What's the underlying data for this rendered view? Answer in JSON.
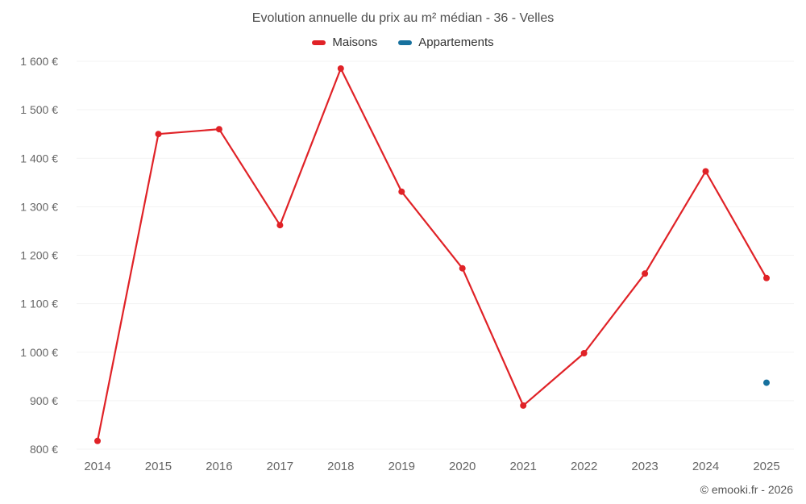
{
  "chart_data": {
    "type": "line",
    "title": "Evolution annuelle du prix au m² médian - 36 - Velles",
    "categories": [
      "2014",
      "2015",
      "2016",
      "2017",
      "2018",
      "2019",
      "2020",
      "2021",
      "2022",
      "2023",
      "2024",
      "2025"
    ],
    "series": [
      {
        "name": "Maisons",
        "color": "#e02227",
        "values": [
          817,
          1450,
          1460,
          1262,
          1585,
          1331,
          1173,
          890,
          998,
          1162,
          1373,
          1153
        ]
      },
      {
        "name": "Appartements",
        "color": "#17719e",
        "values": [
          null,
          null,
          null,
          null,
          null,
          null,
          null,
          null,
          null,
          null,
          null,
          937
        ]
      }
    ],
    "ylim": [
      800,
      1600
    ],
    "yticks": [
      {
        "value": 800,
        "label": "800 €"
      },
      {
        "value": 900,
        "label": "900 €"
      },
      {
        "value": 1000,
        "label": "1 000 €"
      },
      {
        "value": 1100,
        "label": "1 100 €"
      },
      {
        "value": 1200,
        "label": "1 200 €"
      },
      {
        "value": 1300,
        "label": "1 300 €"
      },
      {
        "value": 1400,
        "label": "1 400 €"
      },
      {
        "value": 1500,
        "label": "1 500 €"
      },
      {
        "value": 1600,
        "label": "1 600 €"
      }
    ],
    "grid": "faint-horizontal",
    "legend_position": "top",
    "ylabel": "",
    "xlabel": ""
  },
  "footer": {
    "copyright": "© emooki.fr - 2026"
  }
}
